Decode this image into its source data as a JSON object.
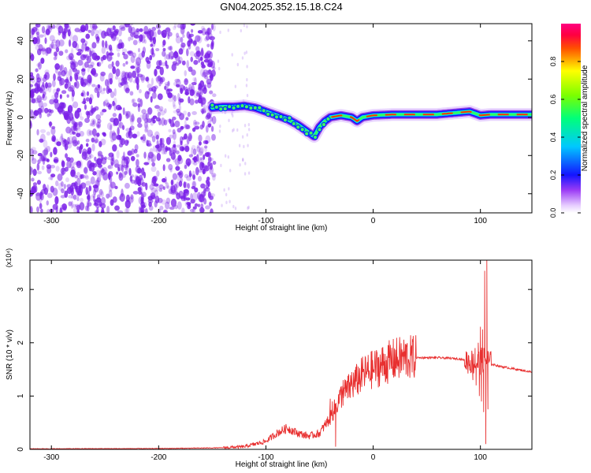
{
  "figure": {
    "title": "GN04.2025.352.15.18.C24"
  },
  "colors": {
    "snr_line": "#e83030",
    "scatter": "#7a1fe8",
    "axis": "#000000"
  },
  "chart_data": [
    {
      "type": "heatmap",
      "title": "GN04.2025.352.15.18.C24",
      "xlabel": "Height of straight line (km)",
      "ylabel": "Frequency (Hz)",
      "xlim": [
        -320,
        148
      ],
      "ylim": [
        -50,
        49
      ],
      "x_ticks": [
        -300,
        -200,
        -100,
        0,
        100
      ],
      "y_ticks": [
        -40,
        -20,
        0,
        20,
        40
      ],
      "x_tick_labels": [
        "-300",
        "-200",
        "-100",
        "0",
        "100"
      ],
      "y_tick_labels": [
        "-40",
        "-20",
        "0",
        "20",
        "40"
      ],
      "colorbar": {
        "label": "Normalized spectral amplitude",
        "range": [
          0,
          1
        ],
        "ticks": [
          0.0,
          0.2,
          0.4,
          0.6,
          0.8
        ],
        "tick_labels": [
          "0.0",
          "0.2",
          "0.4",
          "0.6",
          "0.8"
        ]
      },
      "ridge": {
        "x": [
          -150,
          -140,
          -130,
          -120,
          -110,
          -100,
          -90,
          -80,
          -70,
          -60,
          -55,
          -50,
          -45,
          -40,
          -30,
          -20,
          -15,
          -10,
          0,
          20,
          40,
          60,
          80,
          90,
          95,
          100,
          110,
          148
        ],
        "y": [
          5,
          5.5,
          5.5,
          6,
          5,
          3,
          1,
          -1,
          -4,
          -8,
          -10,
          -5,
          -2,
          0,
          1,
          0,
          -2,
          0,
          1,
          1.5,
          1.5,
          1.5,
          2.5,
          3,
          2,
          1,
          1.5,
          1.5
        ]
      }
    },
    {
      "type": "line",
      "xlabel": "Height of straight line (km)",
      "ylabel": "SNR (10 * v/v)",
      "y_multiplier": "(x10⁴)",
      "xlim": [
        -320,
        148
      ],
      "ylim": [
        0,
        3.55
      ],
      "x_ticks": [
        -300,
        -200,
        -100,
        0,
        100
      ],
      "y_ticks": [
        0,
        1,
        2,
        3
      ],
      "x_tick_labels": [
        "-300",
        "-200",
        "-100",
        "0",
        "100"
      ],
      "y_tick_labels": [
        "0",
        "1",
        "2",
        "3"
      ],
      "envelope": {
        "x": [
          -320,
          -200,
          -140,
          -120,
          -100,
          -90,
          -80,
          -70,
          -60,
          -50,
          -40,
          -30,
          -20,
          -10,
          0,
          10,
          20,
          30,
          40,
          60,
          80,
          90,
          95,
          100,
          105,
          110,
          120,
          148
        ],
        "y": [
          0.01,
          0.015,
          0.03,
          0.05,
          0.15,
          0.3,
          0.4,
          0.3,
          0.25,
          0.3,
          0.6,
          1.0,
          1.2,
          1.4,
          1.5,
          1.6,
          1.68,
          1.72,
          1.72,
          1.72,
          1.7,
          1.65,
          1.6,
          1.65,
          1.7,
          1.6,
          1.55,
          1.45
        ]
      },
      "spikes": [
        {
          "x": 102,
          "y": 2.25
        },
        {
          "x": 103,
          "y": 0.7
        },
        {
          "x": 104,
          "y": 3.35
        },
        {
          "x": 105,
          "y": 0.1
        },
        {
          "x": 106,
          "y": 3.55
        },
        {
          "x": 107,
          "y": 0.75
        },
        {
          "x": 98,
          "y": 2.0
        },
        {
          "x": 99,
          "y": 1.0
        },
        {
          "x": 100,
          "y": 2.3
        },
        {
          "x": 101,
          "y": 0.9
        },
        {
          "x": 95,
          "y": 1.9
        },
        {
          "x": 96,
          "y": 1.2
        },
        {
          "x": 92,
          "y": 1.85
        },
        {
          "x": 93,
          "y": 1.3
        },
        {
          "x": -20,
          "y": 1.45
        },
        {
          "x": -28,
          "y": 1.3
        },
        {
          "x": -35,
          "y": 0.05
        },
        {
          "x": -38,
          "y": 0.9
        },
        {
          "x": -40,
          "y": 0.95
        }
      ]
    }
  ]
}
